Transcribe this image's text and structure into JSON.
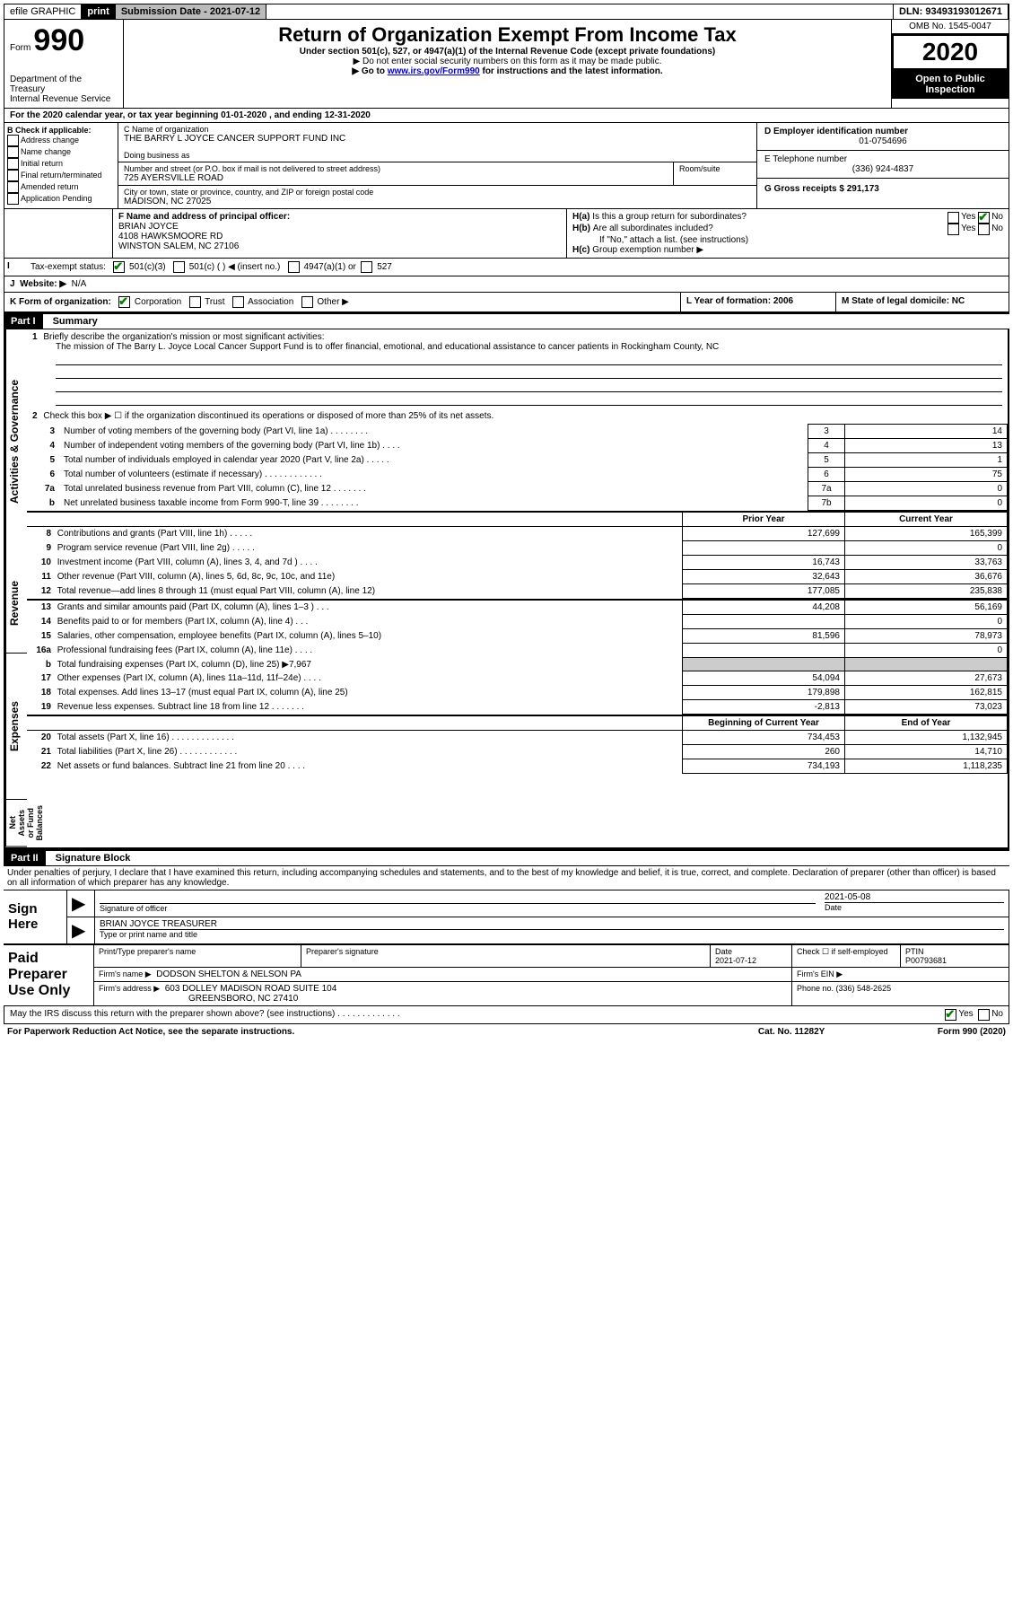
{
  "top_bar": {
    "efile_label": "efile GRAPHIC",
    "print_btn": "print",
    "submission_label": "Submission Date - 2021-07-12",
    "dln_label": "DLN: 93493193012671"
  },
  "header": {
    "form_left_top": "Form",
    "form_num": "990",
    "dept": "Department of the Treasury",
    "irs": "Internal Revenue Service",
    "title": "Return of Organization Exempt From Income Tax",
    "subtitle": "Under section 501(c), 527, or 4947(a)(1) of the Internal Revenue Code (except private foundations)",
    "note1": "▶ Do not enter social security numbers on this form as it may be made public.",
    "note2_pre": "▶ Go to ",
    "note2_link": "www.irs.gov/Form990",
    "note2_post": " for instructions and the latest information.",
    "omb": "OMB No. 1545-0047",
    "year": "2020",
    "open": "Open to Public Inspection"
  },
  "period": "For the 2020 calendar year, or tax year beginning 01-01-2020     , and ending 12-31-2020",
  "block_b": {
    "label": "B Check if applicable:",
    "items": [
      "Address change",
      "Name change",
      "Initial return",
      "Final return/terminated",
      "Amended return",
      "Application Pending"
    ]
  },
  "block_c": {
    "name_label": "C Name of organization",
    "org_name": "THE BARRY L JOYCE CANCER SUPPORT FUND INC",
    "dba_label": "Doing business as",
    "addr_label": "Number and street (or P.O. box if mail is not delivered to street address)",
    "room_label": "Room/suite",
    "addr": "725 AYERSVILLE ROAD",
    "city_label": "City or town, state or province, country, and ZIP or foreign postal code",
    "city": "MADISON, NC  27025"
  },
  "block_d": {
    "label": "D Employer identification number",
    "val": "01-0754696"
  },
  "block_e": {
    "label": "E Telephone number",
    "val": "(336) 924-4837"
  },
  "block_g": {
    "label": "G Gross receipts $ 291,173"
  },
  "block_f": {
    "label": "F  Name and address of principal officer:",
    "name": "BRIAN JOYCE",
    "addr1": "4108 HAWKSMOORE RD",
    "addr2": "WINSTON SALEM, NC  27106"
  },
  "block_h": {
    "a": "Is this a group return for subordinates?",
    "b": "Are all subordinates included?",
    "note": "If \"No,\" attach a list. (see instructions)",
    "c": "Group exemption number ▶",
    "yes": "Yes",
    "no": "No"
  },
  "block_i": {
    "label": "Tax-exempt status:",
    "opts": [
      "501(c)(3)",
      "501(c) (  ) ◀ (insert no.)",
      "4947(a)(1) or",
      "527"
    ]
  },
  "block_j": {
    "label": "Website: ▶",
    "val": "N/A"
  },
  "block_k": {
    "label": "K Form of organization:",
    "opts": [
      "Corporation",
      "Trust",
      "Association",
      "Other ▶"
    ]
  },
  "block_l": {
    "label": "L Year of formation: 2006"
  },
  "block_m": {
    "label": "M State of legal domicile: NC"
  },
  "part1": {
    "band": "Part I",
    "title": "Summary",
    "q1_label": "Briefly describe the organization's mission or most significant activities:",
    "q1_text": "The mission of The Barry L. Joyce Local Cancer Support Fund is to offer financial, emotional, and educational assistance to cancer patients in Rockingham County, NC",
    "q2": "Check this box ▶ ☐  if the organization discontinued its operations or disposed of more than 25% of its net assets.",
    "prior_hdr": "Prior Year",
    "current_hdr": "Current Year",
    "beg_hdr": "Beginning of Current Year",
    "end_hdr": "End of Year",
    "labels": {
      "activities": "Activities & Governance",
      "revenue": "Revenue",
      "expenses": "Expenses",
      "netassets": "Net Assets or Fund Balances"
    },
    "lines_top": [
      {
        "n": "3",
        "t": "Number of voting members of the governing body (Part VI, line 1a)  .   .   .   .   .   .   .   .",
        "box": "3",
        "v": "14"
      },
      {
        "n": "4",
        "t": "Number of independent voting members of the governing body (Part VI, line 1b)  .   .   .   .",
        "box": "4",
        "v": "13"
      },
      {
        "n": "5",
        "t": "Total number of individuals employed in calendar year 2020 (Part V, line 2a)  .   .   .   .   .",
        "box": "5",
        "v": "1"
      },
      {
        "n": "6",
        "t": "Total number of volunteers (estimate if necessary)   .   .   .   .   .   .   .   .   .   .   .   .",
        "box": "6",
        "v": "75"
      },
      {
        "n": "7a",
        "t": "Total unrelated business revenue from Part VIII, column (C), line 12   .   .   .   .   .   .   .",
        "box": "7a",
        "v": "0"
      },
      {
        "n": "b",
        "t": "Net unrelated business taxable income from Form 990-T, line 39   .   .   .   .   .   .   .   .",
        "box": "7b",
        "v": "0"
      }
    ],
    "lines_rev": [
      {
        "n": "8",
        "t": "Contributions and grants (Part VIII, line 1h)   .   .   .   .   .",
        "p": "127,699",
        "c": "165,399"
      },
      {
        "n": "9",
        "t": "Program service revenue (Part VIII, line 2g)   .   .   .   .   .",
        "p": "",
        "c": "0"
      },
      {
        "n": "10",
        "t": "Investment income (Part VIII, column (A), lines 3, 4, and 7d )   .   .   .   .",
        "p": "16,743",
        "c": "33,763"
      },
      {
        "n": "11",
        "t": "Other revenue (Part VIII, column (A), lines 5, 6d, 8c, 9c, 10c, and 11e)",
        "p": "32,643",
        "c": "36,676"
      },
      {
        "n": "12",
        "t": "Total revenue—add lines 8 through 11 (must equal Part VIII, column (A), line 12)",
        "p": "177,085",
        "c": "235,838"
      }
    ],
    "lines_exp": [
      {
        "n": "13",
        "t": "Grants and similar amounts paid (Part IX, column (A), lines 1–3 )   .   .   .",
        "p": "44,208",
        "c": "56,169"
      },
      {
        "n": "14",
        "t": "Benefits paid to or for members (Part IX, column (A), line 4)   .   .   .",
        "p": "",
        "c": "0"
      },
      {
        "n": "15",
        "t": "Salaries, other compensation, employee benefits (Part IX, column (A), lines 5–10)",
        "p": "81,596",
        "c": "78,973"
      },
      {
        "n": "16a",
        "t": "Professional fundraising fees (Part IX, column (A), line 11e)   .   .   .   .",
        "p": "",
        "c": "0"
      },
      {
        "n": "b",
        "t": "Total fundraising expenses (Part IX, column (D), line 25) ▶7,967",
        "p": "SHADE",
        "c": "SHADE"
      },
      {
        "n": "17",
        "t": "Other expenses (Part IX, column (A), lines 11a–11d, 11f–24e)   .   .   .   .",
        "p": "54,094",
        "c": "27,673"
      },
      {
        "n": "18",
        "t": "Total expenses. Add lines 13–17 (must equal Part IX, column (A), line 25)",
        "p": "179,898",
        "c": "162,815"
      },
      {
        "n": "19",
        "t": "Revenue less expenses. Subtract line 18 from line 12   .   .   .   .   .   .   .",
        "p": "-2,813",
        "c": "73,023"
      }
    ],
    "lines_net": [
      {
        "n": "20",
        "t": "Total assets (Part X, line 16)  .   .   .   .   .   .   .   .   .   .   .   .   .",
        "p": "734,453",
        "c": "1,132,945"
      },
      {
        "n": "21",
        "t": "Total liabilities (Part X, line 26)  .   .   .   .   .   .   .   .   .   .   .   .",
        "p": "260",
        "c": "14,710"
      },
      {
        "n": "22",
        "t": "Net assets or fund balances. Subtract line 21 from line 20   .   .   .   .",
        "p": "734,193",
        "c": "1,118,235"
      }
    ]
  },
  "part2": {
    "band": "Part II",
    "title": "Signature Block",
    "penalty": "Under penalties of perjury, I declare that I have examined this return, including accompanying schedules and statements, and to the best of my knowledge and belief, it is true, correct, and complete. Declaration of preparer (other than officer) is based on all information of which preparer has any knowledge.",
    "sign_here": "Sign Here",
    "sig_officer": "Signature of officer",
    "date_label": "Date",
    "date_val": "2021-05-08",
    "officer_name": "BRIAN JOYCE  TREASURER",
    "type_name": "Type or print name and title",
    "paid": "Paid Preparer Use Only",
    "prep_name_label": "Print/Type preparer's name",
    "prep_sig_label": "Preparer's signature",
    "prep_date_label": "Date",
    "prep_date": "2021-07-12",
    "check_self": "Check ☐ if self-employed",
    "ptin_label": "PTIN",
    "ptin": "P00793681",
    "firm_name_label": "Firm's name    ▶",
    "firm_name": "DODSON SHELTON & NELSON PA",
    "firm_ein_label": "Firm's EIN ▶",
    "firm_addr_label": "Firm's address ▶",
    "firm_addr1": "603 DOLLEY MADISON ROAD SUITE 104",
    "firm_addr2": "GREENSBORO, NC  27410",
    "phone_label": "Phone no. (336) 548-2625",
    "discuss": "May the IRS discuss this return with the preparer shown above? (see instructions)   .   .   .   .   .   .   .   .   .   .   .   .   .",
    "yes": "Yes",
    "no": "No"
  },
  "footer": {
    "left": "For Paperwork Reduction Act Notice, see the separate instructions.",
    "mid": "Cat. No. 11282Y",
    "right": "Form 990 (2020)"
  }
}
